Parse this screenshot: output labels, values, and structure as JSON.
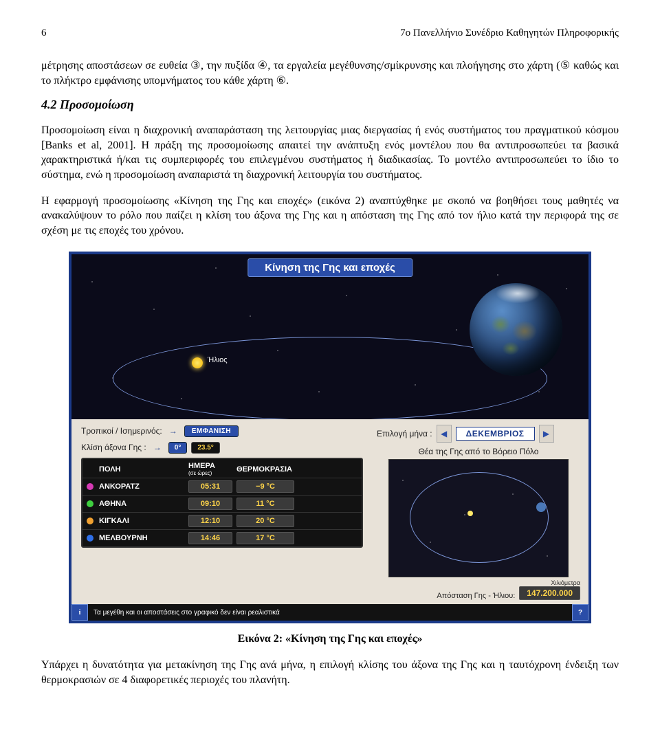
{
  "header": {
    "page_number": "6",
    "title": "7ο Πανελλήνιο Συνέδριο Καθηγητών Πληροφορικής"
  },
  "para1": "μέτρησης αποστάσεων σε ευθεία ③, την πυξίδα ④, τα εργαλεία μεγέθυνσης/σμίκρυνσης και πλοήγησης στο χάρτη (⑤ καθώς και το πλήκτρο εμφάνισης υπομνήματος του κάθε χάρτη ⑥.",
  "section_title": "4.2 Προσομοίωση",
  "para2": "Προσομοίωση είναι η διαχρονική αναπαράσταση της λειτουργίας μιας διεργασίας ή ενός συστήματος του πραγματικού κόσμου [Banks et al, 2001]. Η πράξη της προσομοίωσης απαιτεί την ανάπτυξη ενός μοντέλου που θα αντιπροσωπεύει τα βασικά χαρακτηριστικά ή/και τις συμπεριφορές του επιλεγμένου συστήματος ή διαδικασίας. Το μοντέλο αντιπροσωπεύει το ίδιο το σύστημα, ενώ η προσομοίωση αναπαριστά τη διαχρονική λειτουργία του συστήματος.",
  "para3": "Η εφαρμογή προσομοίωσης «Κίνηση της Γης και εποχές» (εικόνα 2) αναπτύχθηκε με σκοπό να βοηθήσει τους μαθητές να ανακαλύψουν το ρόλο που παίζει η κλίση του άξονα της Γης και η απόσταση της Γης από τον ήλιο κατά την περιφορά της σε σχέση με τις εποχές του χρόνου.",
  "sim": {
    "title": "Κίνηση της Γης και εποχές",
    "sun_label": "Ήλιος",
    "controls": {
      "tropics_label": "Τροπικοί / Ισημερινός:",
      "show_btn": "ΕΜΦΑΝΙΣΗ",
      "tilt_label": "Κλίση άξονα Γης :",
      "tilt_zero": "0°",
      "tilt_val": "23.5°"
    },
    "city_table": {
      "col_city": "ΠΟΛΗ",
      "col_day": "ΗΜΕΡΑ",
      "col_day_sub": "(σε ώρες)",
      "col_temp": "ΘΕΡΜΟΚΡΑΣΙΑ",
      "rows": [
        {
          "dot": "#d63ab4",
          "city": "ΑΝΚΟΡΑΤΖ",
          "day": "05:31",
          "temp": "−9 °C"
        },
        {
          "dot": "#3fcf3f",
          "city": "ΑΘΗΝΑ",
          "day": "09:10",
          "temp": "11 °C"
        },
        {
          "dot": "#f0a030",
          "city": "ΚΙΓΚΑΛΙ",
          "day": "12:10",
          "temp": "20 °C"
        },
        {
          "dot": "#2e6fe8",
          "city": "ΜΕΛΒΟΥΡΝΗ",
          "day": "14:46",
          "temp": "17 °C"
        }
      ]
    },
    "right": {
      "month_label": "Επιλογή μήνα :",
      "month_value": "ΔΕΚΕΜΒΡΙΟΣ",
      "pole_label": "Θέα της Γης από το Βόρειο Πόλο",
      "dist_label": "Απόσταση Γης - Ήλιου:",
      "km_label": "Χιλιόμετρα",
      "dist_value": "147.200.000"
    },
    "footer": {
      "note": "Τα μεγέθη και οι αποστάσεις στο γραφικό δεν είναι ρεαλιστικά",
      "info": "i",
      "help": "?"
    },
    "colors": {
      "frame_border": "#1b3a8a",
      "panel_bg": "#e8e2d8",
      "space_bg": "#0b0b1a",
      "accent": "#2a4da8",
      "value_text": "#ffd54a",
      "value_bg": "#3a3a3a",
      "orbit": "#7a94d6"
    }
  },
  "caption": "Εικόνα 2: «Κίνηση της Γης και εποχές»",
  "para4": "Υπάρχει η δυνατότητα για μετακίνηση της Γης ανά μήνα, η επιλογή κλίσης του άξονα της Γης και η ταυτόχρονη ένδειξη των θερμοκρασιών σε 4 διαφορετικές περιοχές του πλανήτη."
}
